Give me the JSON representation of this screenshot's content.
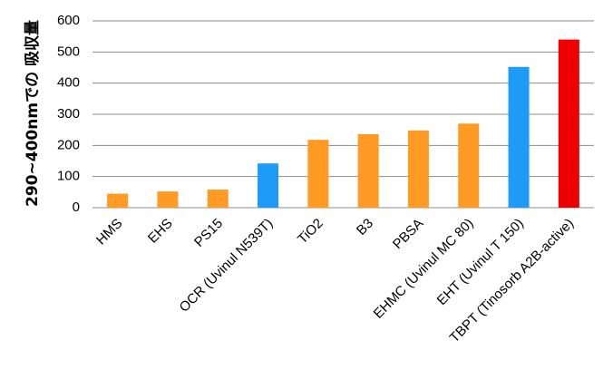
{
  "chart_data": {
    "type": "bar",
    "ylabel": "290~400nmでの 吸収量",
    "ylim": [
      0,
      600
    ],
    "yticks": [
      0,
      100,
      200,
      300,
      400,
      500,
      600
    ],
    "grid": true,
    "categories": [
      "HMS",
      "EHS",
      "PS15",
      "OCR (Uvinul N539T)",
      "TiO2",
      "B3",
      "PBSA",
      "EHMC (Uvinul MC 80)",
      "EHT (Uvinul T 150)",
      "TBPT (Tinosorb A2B-active)"
    ],
    "values": [
      45,
      52,
      58,
      142,
      218,
      236,
      248,
      270,
      452,
      540
    ],
    "colors": [
      "#FF9B25",
      "#FF9B25",
      "#FF9B25",
      "#1E9AF7",
      "#FF9B25",
      "#FF9B25",
      "#FF9B25",
      "#FF9B25",
      "#1E9AF7",
      "#EE0000"
    ]
  }
}
